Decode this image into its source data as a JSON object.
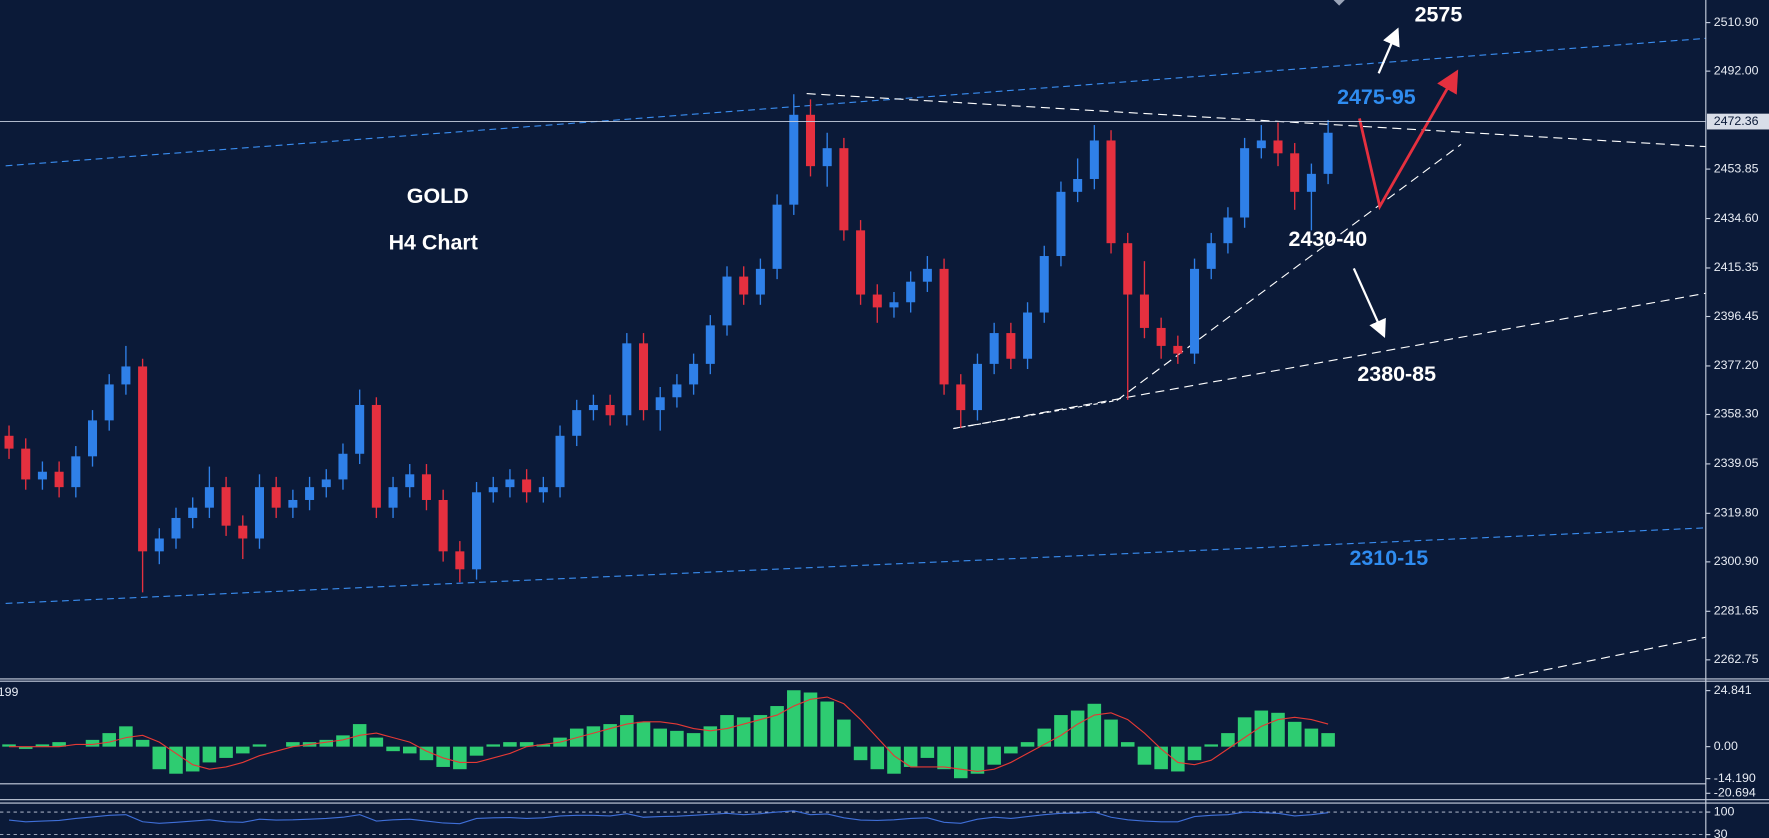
{
  "chart_data": [
    {
      "type": "candlestick",
      "title": "GOLD",
      "subtitle": "H4 Chart",
      "ylim": [
        2255.3,
        2519.7
      ],
      "yticks": [
        {
          "value": 2510.9,
          "label": "2510.90"
        },
        {
          "value": 2492,
          "label": "2492.00"
        },
        {
          "value": 2453.85,
          "label": "2453.85"
        },
        {
          "value": 2434.6,
          "label": "2434.60"
        },
        {
          "value": 2415.35,
          "label": "2415.35"
        },
        {
          "value": 2396.45,
          "label": "2396.45"
        },
        {
          "value": 2377.2,
          "label": "2377.20"
        },
        {
          "value": 2358.3,
          "label": "2358.30"
        },
        {
          "value": 2339.05,
          "label": "2339.05"
        },
        {
          "value": 2319.8,
          "label": "2319.80"
        },
        {
          "value": 2300.9,
          "label": "2300.90"
        },
        {
          "value": 2281.65,
          "label": "2281.65"
        },
        {
          "value": 2262.75,
          "label": "2262.75"
        }
      ],
      "current_price": 2472.36,
      "up_color": "#2f80e8",
      "down_color": "#e5303f",
      "open": [
        2350,
        2345,
        2333,
        2336,
        2330,
        2342,
        2356,
        2370,
        2377,
        2305,
        2310,
        2318,
        2322,
        2330,
        2315,
        2310,
        2330,
        2322,
        2325,
        2330,
        2333,
        2343,
        2362,
        2322,
        2330,
        2335,
        2325,
        2305,
        2298,
        2328,
        2330,
        2333,
        2328,
        2330,
        2350,
        2360,
        2362,
        2358,
        2386,
        2360,
        2365,
        2370,
        2378,
        2393,
        2412,
        2405,
        2415,
        2440,
        2475,
        2455,
        2462,
        2430,
        2405,
        2400,
        2402,
        2410,
        2415,
        2370,
        2360,
        2378,
        2390,
        2380,
        2398,
        2420,
        2445,
        2450,
        2465,
        2425,
        2405,
        2392,
        2385,
        2382,
        2415,
        2425,
        2435,
        2462,
        2465,
        2460,
        2445,
        2452
      ],
      "high": [
        2354,
        2349,
        2340,
        2340,
        2346,
        2360,
        2374,
        2385,
        2380,
        2314,
        2322,
        2326,
        2338,
        2334,
        2319,
        2335,
        2334,
        2329,
        2334,
        2337,
        2347,
        2368,
        2365,
        2334,
        2339,
        2339,
        2329,
        2309,
        2332,
        2334,
        2337,
        2337,
        2334,
        2354,
        2364,
        2366,
        2366,
        2390,
        2390,
        2369,
        2374,
        2382,
        2397,
        2416,
        2416,
        2419,
        2444,
        2483,
        2481,
        2468,
        2466,
        2434,
        2409,
        2406,
        2414,
        2420,
        2419,
        2374,
        2382,
        2394,
        2394,
        2402,
        2424,
        2449,
        2458,
        2471,
        2469,
        2429,
        2418,
        2396,
        2389,
        2419,
        2429,
        2439,
        2466,
        2471,
        2472,
        2464,
        2456,
        2473
      ],
      "low": [
        2341,
        2329,
        2329,
        2326,
        2326,
        2338,
        2352,
        2366,
        2289,
        2300,
        2306,
        2314,
        2318,
        2311,
        2302,
        2306,
        2318,
        2318,
        2321,
        2326,
        2329,
        2339,
        2318,
        2318,
        2326,
        2321,
        2301,
        2293,
        2294,
        2324,
        2326,
        2324,
        2324,
        2326,
        2346,
        2356,
        2354,
        2354,
        2356,
        2352,
        2361,
        2366,
        2374,
        2389,
        2401,
        2401,
        2411,
        2436,
        2451,
        2447,
        2426,
        2401,
        2394,
        2396,
        2398,
        2406,
        2366,
        2353,
        2356,
        2374,
        2376,
        2376,
        2394,
        2416,
        2441,
        2446,
        2421,
        2364,
        2388,
        2380,
        2378,
        2378,
        2411,
        2421,
        2431,
        2458,
        2455,
        2438,
        2430,
        2448
      ],
      "close": [
        2345,
        2333,
        2336,
        2330,
        2342,
        2356,
        2370,
        2377,
        2305,
        2310,
        2318,
        2322,
        2330,
        2315,
        2310,
        2330,
        2322,
        2325,
        2330,
        2333,
        2343,
        2362,
        2322,
        2330,
        2335,
        2325,
        2305,
        2298,
        2328,
        2330,
        2333,
        2328,
        2330,
        2350,
        2360,
        2362,
        2358,
        2386,
        2360,
        2365,
        2370,
        2378,
        2393,
        2412,
        2405,
        2415,
        2440,
        2475,
        2455,
        2462,
        2430,
        2405,
        2400,
        2402,
        2410,
        2415,
        2370,
        2360,
        2378,
        2390,
        2380,
        2398,
        2420,
        2445,
        2450,
        2465,
        2425,
        2405,
        2392,
        2385,
        2382,
        2415,
        2425,
        2435,
        2462,
        2465,
        2460,
        2445,
        2452,
        2468
      ],
      "annotations": [
        {
          "text": "2575",
          "color": "#ffffff"
        },
        {
          "text": "2475-95",
          "color": "#2f8cf0"
        },
        {
          "text": "2430-40",
          "color": "#ffffff"
        },
        {
          "text": "2380-85",
          "color": "#ffffff"
        },
        {
          "text": "2310-15",
          "color": "#2f8cf0"
        }
      ]
    },
    {
      "type": "macd",
      "label": "199",
      "ylim": [
        -21,
        29
      ],
      "yticks": [
        24.841,
        {
          "value": 0,
          "label": "0.00"
        },
        {
          "value": -14.19,
          "label": "-14.190"
        },
        {
          "value": -20.694,
          "label": "-20.694"
        }
      ],
      "histogram": {
        "color": "#2ecc71",
        "values": [
          1,
          -1,
          1,
          2,
          0,
          3,
          6,
          9,
          3,
          -10,
          -12,
          -11,
          -7,
          -5,
          -3,
          1,
          0,
          2,
          2,
          3,
          5,
          10,
          4,
          -2,
          -3,
          -6,
          -9,
          -10,
          -4,
          1,
          2,
          2,
          1,
          4,
          8,
          9,
          10,
          14,
          11,
          8,
          7,
          6,
          9,
          14,
          13,
          14,
          18,
          25,
          24,
          20,
          12,
          -6,
          -10,
          -12,
          -9,
          -5,
          -10,
          -14,
          -12,
          -8,
          -3,
          2,
          8,
          14,
          16,
          19,
          12,
          2,
          -8,
          -10,
          -11,
          -6,
          1,
          6,
          13,
          16,
          15,
          11,
          8,
          6
        ]
      },
      "signal": {
        "color": "#e53935",
        "values": [
          0,
          0,
          0,
          0,
          1,
          1,
          2,
          4,
          5,
          2,
          -3,
          -8,
          -10,
          -9,
          -7,
          -4,
          -2,
          0,
          1,
          2,
          3,
          5,
          6,
          4,
          2,
          -2,
          -5,
          -7,
          -7,
          -5,
          -3,
          0,
          1,
          2,
          4,
          6,
          8,
          10,
          11,
          11,
          10,
          8,
          7,
          8,
          10,
          12,
          14,
          18,
          21,
          22,
          19,
          12,
          4,
          -4,
          -9,
          -9,
          -9,
          -10,
          -11,
          -10,
          -7,
          -3,
          1,
          5,
          10,
          14,
          15,
          12,
          6,
          -1,
          -7,
          -8,
          -6,
          -1,
          4,
          9,
          12,
          13,
          12,
          10
        ]
      }
    },
    {
      "type": "line",
      "ylim": [
        19.5,
        128
      ],
      "yticks": [
        100,
        30
      ],
      "color": "#3f6fd8",
      "values": [
        75,
        70,
        72,
        74,
        80,
        85,
        90,
        92,
        70,
        65,
        68,
        72,
        76,
        70,
        68,
        78,
        75,
        76,
        78,
        80,
        84,
        92,
        72,
        76,
        78,
        72,
        66,
        64,
        80,
        82,
        83,
        80,
        82,
        88,
        90,
        90,
        88,
        95,
        84,
        86,
        87,
        90,
        93,
        96,
        92,
        95,
        100,
        104,
        92,
        94,
        82,
        75,
        74,
        76,
        80,
        82,
        68,
        65,
        78,
        84,
        80,
        86,
        92,
        96,
        97,
        100,
        84,
        76,
        72,
        70,
        70,
        86,
        90,
        92,
        100,
        98,
        96,
        88,
        92,
        98
      ]
    }
  ]
}
